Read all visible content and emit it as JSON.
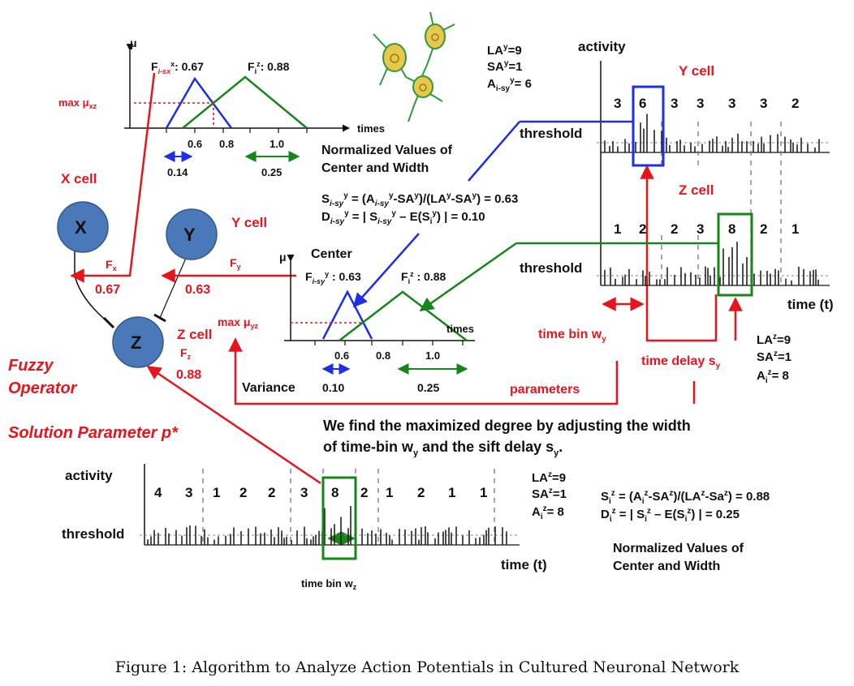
{
  "caption": "Figure 1: Algorithm to Analyze Action Potentials in Cultured Neuronal Network",
  "colors": {
    "red": "#e8141c",
    "blue": "#1c2ee6",
    "green": "#17861a",
    "node": "#4a78b8",
    "text": "#111111"
  },
  "nodes": {
    "x": "X",
    "y": "Y",
    "z": "Z",
    "x_label": "X cell",
    "y_label": "Y cell",
    "z_label": "Z cell"
  },
  "fuzzy": {
    "line1": "Fuzzy",
    "line2": "Operator",
    "solution": "Solution Parameter p*"
  },
  "edges": {
    "fx": "F",
    "fx_sub": "x",
    "fx_val": "0.67",
    "fy": "F",
    "fy_sub": "y",
    "fy_val": "0.63",
    "fz": "F",
    "fz_sub": "z",
    "fz_val": "0.88"
  },
  "top_chart": {
    "mu": "μ",
    "f_left": "F",
    "f_left_sub": "i-sx",
    "f_left_sup": "x",
    "f_left_val": ": 0.67",
    "f_right": "F",
    "f_right_sub": "i",
    "f_right_sup": "z",
    "f_right_val": ": 0.88",
    "max": "max μ",
    "max_sub": "xz",
    "axis": "times",
    "ticks": [
      "0.6",
      "0.8",
      "1.0"
    ],
    "blue_w": "0.14",
    "green_w": "0.25"
  },
  "norm_title": [
    "Normalized Values of",
    "Center and Width"
  ],
  "y_stats": {
    "la": "LA",
    "la_sup": "y",
    "la_val": "=9",
    "sa": "SA",
    "sa_sup": "y",
    "sa_val": "=1",
    "a": "A",
    "a_sub": "i-sy",
    "a_sup": "y",
    "a_val": "= 6"
  },
  "formulas_y": {
    "s": "S",
    "s_sub": "i-sy",
    "s_sup": "y",
    "s_rest": " = (A",
    "s_sub2": "i-sy",
    "s_sup2": "y",
    "s_rest2": "-SA",
    "s_sup3": "y",
    "s_rest3": ")/(LA",
    "s_sup4": "y",
    "s_rest4": "-SA",
    "s_sup5": "y",
    "s_rest5": ") = 0.63",
    "d": "D",
    "d_sub": "i-sy",
    "d_sup": "y",
    "d_rest": " = | S",
    "d_sub2": "i-sy",
    "d_sup2": "y",
    "d_rest2": " – E(S",
    "d_sub3": "i",
    "d_sup3": "y",
    "d_rest3": ") | = 0.10"
  },
  "mid_chart": {
    "mu": "μ",
    "center": "Center",
    "f_left": "F",
    "f_left_sub": "i-sy",
    "f_left_sup": "y",
    "f_left_val": " : 0.63",
    "f_right": "F",
    "f_right_sub": "i",
    "f_right_sup": "z",
    "f_right_val": " : 0.88",
    "max": "max μ",
    "max_sub": "yz",
    "axis": "times",
    "ticks": [
      "0.6",
      "0.8",
      "1.0"
    ],
    "variance": "Variance",
    "blue_w": "0.10",
    "green_w": "0.25"
  },
  "right_panel": {
    "activity": "activity",
    "y_cell": "Y cell",
    "z_cell": "Z cell",
    "threshold": "threshold",
    "y_counts": [
      "3",
      "6",
      "3",
      "3",
      "3",
      "3",
      "2"
    ],
    "z_counts": [
      "1",
      "2",
      "2",
      "3",
      "8",
      "2",
      "1"
    ],
    "time": "time (t)",
    "time_bin": "time bin w",
    "time_bin_sub": "y",
    "time_delay": "time delay s",
    "time_delay_sub": "y",
    "parameters": "parameters"
  },
  "z_stats": {
    "la": "LA",
    "la_sup": "z",
    "la_val": "=9",
    "sa": "SA",
    "sa_sup": "z",
    "sa_val": "=1",
    "a": "A",
    "a_sub": "i",
    "a_sup": "z",
    "a_val": "= 8"
  },
  "statement": [
    "We find the maximized degree by adjusting the width",
    "of time-bin w",
    "y",
    " and the sift delay s",
    "y",
    "."
  ],
  "bottom_panel": {
    "activity": "activity",
    "threshold": "threshold",
    "counts": [
      "4",
      "3",
      "1",
      "2",
      "2",
      "3",
      "8",
      "2",
      "1",
      "2",
      "1",
      "1"
    ],
    "time": "time (t)",
    "time_bin": "time bin w",
    "time_bin_sub": "z"
  },
  "formulas_z": {
    "s": "S",
    "s_sub": "i",
    "s_sup": "z",
    "s_rest": " = (A",
    "s_sub2": "i",
    "s_sup2": "z",
    "s_rest2": "-SA",
    "s_sup3": "z",
    "s_rest3": ")/(LA",
    "s_sup4": "z",
    "s_rest4": "-Sa",
    "s_sup5": "z",
    "s_rest5": ") = 0.88",
    "d": "D",
    "d_sub": "i",
    "d_sup": "z",
    "d_rest": " = | S",
    "d_sub2": "i",
    "d_sup2": "z",
    "d_rest2": " – E(S",
    "d_sub3": "i",
    "d_sup3": "z",
    "d_rest3": ") | = 0.25"
  },
  "norm_title_bottom": [
    "Normalized Values of",
    "Center and Width"
  ]
}
